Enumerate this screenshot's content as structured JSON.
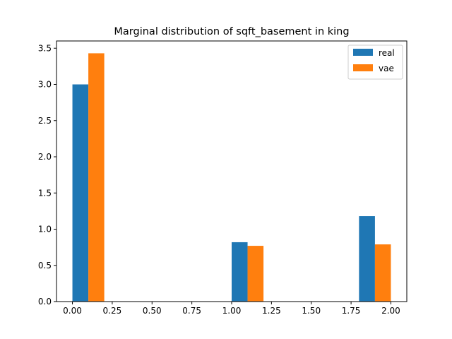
{
  "chart_data": {
    "type": "bar",
    "title": "Marginal distribution of sqft_basement in king",
    "xlabel": "",
    "ylabel": "",
    "x_ticks": [
      "0.00",
      "0.25",
      "0.50",
      "0.75",
      "1.00",
      "1.25",
      "1.50",
      "1.75",
      "2.00"
    ],
    "y_ticks": [
      "0.0",
      "0.5",
      "1.0",
      "1.5",
      "2.0",
      "2.5",
      "3.0",
      "3.5"
    ],
    "xlim": [
      -0.1,
      2.1
    ],
    "ylim": [
      0,
      3.6
    ],
    "bin_edges": [
      0.0,
      0.2,
      1.0,
      1.2,
      1.8,
      2.0
    ],
    "bins": [
      {
        "start": 0.0,
        "end": 0.2
      },
      {
        "start": 1.0,
        "end": 1.2
      },
      {
        "start": 1.8,
        "end": 2.0
      }
    ],
    "series": [
      {
        "name": "real",
        "color": "#1f77b4",
        "values": [
          3.0,
          0.82,
          1.18
        ]
      },
      {
        "name": "vae",
        "color": "#ff7f0e",
        "values": [
          3.43,
          0.77,
          0.79
        ]
      }
    ],
    "grid": false,
    "legend_position": "top-right"
  }
}
